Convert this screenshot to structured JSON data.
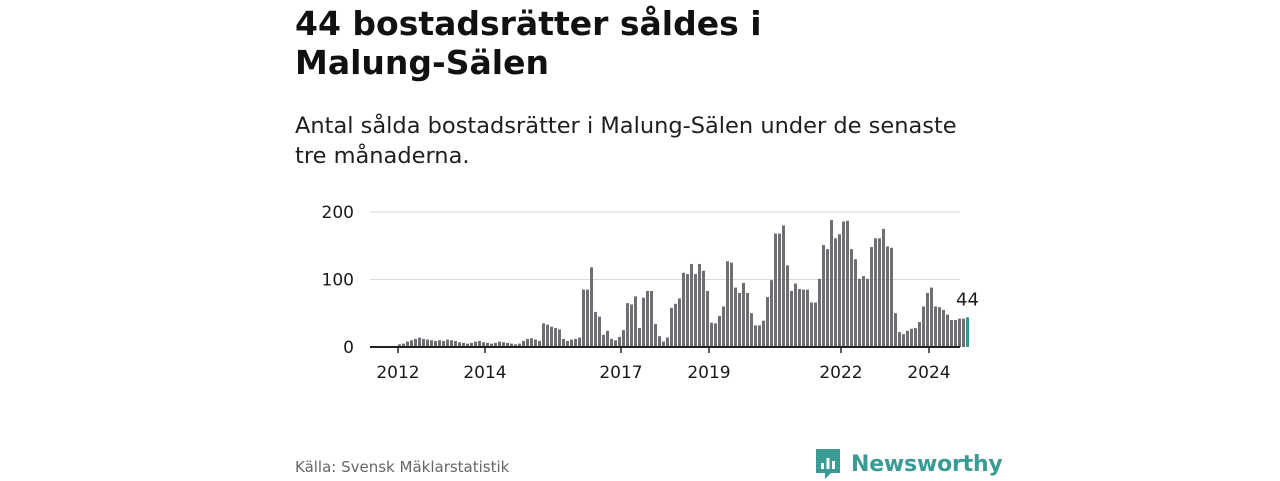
{
  "title": "44 bostadsrätter såldes i Malung-Sälen",
  "subtitle": "Antal sålda bostadsrätter i Malung-Sälen under de senaste tre månaderna.",
  "source": "Källa: Svensk Mäklarstatistik",
  "brand": {
    "name": "Newsworthy",
    "icon": "newsworthy-logo-icon",
    "color": "#3a9b95"
  },
  "chart_data": {
    "type": "bar",
    "y_ticks": [
      "0",
      "100",
      "200"
    ],
    "x_ticks": [
      "2012",
      "2014",
      "2017",
      "2019",
      "2022",
      "2024"
    ],
    "ylim": [
      0,
      200
    ],
    "grid": true,
    "last_label": "44",
    "colors": {
      "bar": "#6e6e73",
      "highlight": "#2a9d8f",
      "grid": "#d9d9d9",
      "axis": "#222222"
    },
    "values": [
      4,
      5,
      8,
      10,
      12,
      14,
      12,
      11,
      10,
      9,
      10,
      9,
      11,
      10,
      9,
      7,
      6,
      5,
      6,
      8,
      9,
      7,
      6,
      5,
      6,
      8,
      7,
      6,
      5,
      4,
      5,
      9,
      12,
      13,
      11,
      9,
      35,
      33,
      30,
      28,
      26,
      12,
      9,
      11,
      12,
      14,
      85,
      85,
      118,
      52,
      45,
      18,
      24,
      12,
      10,
      15,
      25,
      65,
      63,
      75,
      28,
      73,
      83,
      83,
      34,
      16,
      8,
      14,
      58,
      64,
      72,
      110,
      108,
      123,
      108,
      123,
      113,
      83,
      36,
      35,
      46,
      60,
      127,
      125,
      88,
      80,
      95,
      80,
      50,
      32,
      32,
      39,
      74,
      99,
      168,
      168,
      180,
      121,
      83,
      94,
      86,
      85,
      85,
      66,
      66,
      101,
      151,
      145,
      188,
      161,
      167,
      186,
      187,
      145,
      130,
      101,
      105,
      101,
      148,
      161,
      161,
      175,
      149,
      147,
      50,
      22,
      19,
      24,
      27,
      28,
      37,
      60,
      80,
      88,
      60,
      59,
      55,
      48,
      40,
      40,
      42,
      42,
      44
    ]
  }
}
